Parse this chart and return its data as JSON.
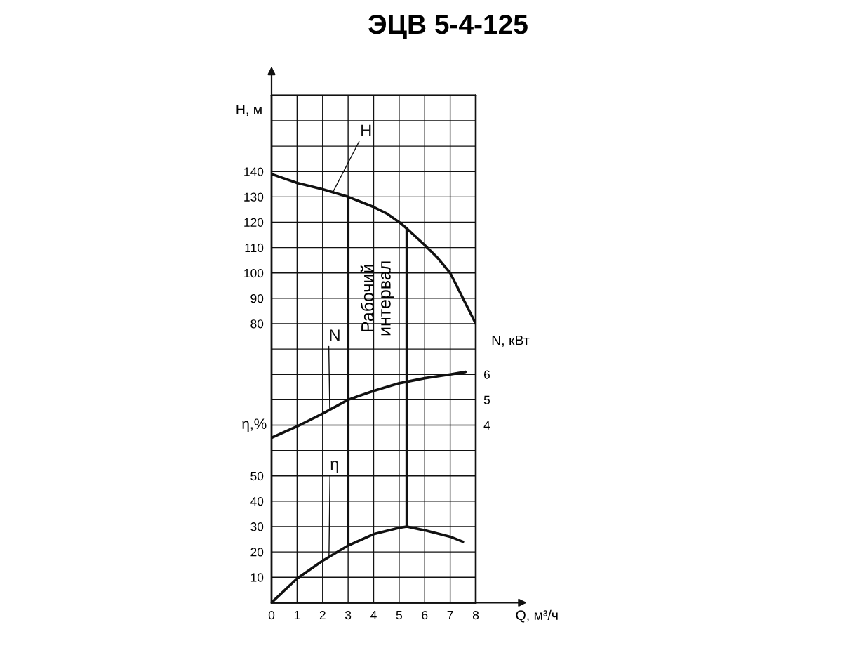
{
  "chart_data": {
    "type": "line",
    "title": "ЭЦВ 5-4-125",
    "xlabel": "Q, м³/ч",
    "ylabel": "H, м",
    "y2label": "N, кВт",
    "y3label": "η,%",
    "xlim": [
      0,
      8
    ],
    "xticks": [
      0,
      1,
      2,
      3,
      4,
      5,
      6,
      7,
      8
    ],
    "ylim": [
      -30,
      170
    ],
    "yticks": [
      {
        "value": -20,
        "label": null
      },
      {
        "value": -10,
        "label": null
      },
      {
        "value": 0,
        "label": null
      },
      {
        "value": 10,
        "label": null
      },
      {
        "value": 20,
        "label": null
      },
      {
        "value": 30,
        "label": null
      },
      {
        "value": 40,
        "label": null
      },
      {
        "value": 50,
        "label": null
      },
      {
        "value": 60,
        "label": null
      },
      {
        "value": 70,
        "label": null
      },
      80,
      90,
      100,
      110,
      120,
      130,
      140,
      {
        "value": 150,
        "label": null
      },
      {
        "value": 160,
        "label": null
      }
    ],
    "y2lim": [
      -3,
      17
    ],
    "y2ticks": [
      4,
      5,
      6
    ],
    "y3lim": [
      0,
      200
    ],
    "y3ticks": [
      10,
      20,
      30,
      40,
      50
    ],
    "grid": true,
    "series": [
      {
        "name": "H",
        "color": "#111111",
        "axis": "y",
        "x": [
          0,
          1,
          2,
          3,
          4,
          4.5,
          5,
          5.3,
          6,
          6.5,
          7,
          7.5,
          8
        ],
        "values": [
          139,
          135.5,
          133,
          130,
          126,
          123.5,
          120,
          117.5,
          111,
          106,
          100,
          90,
          80
        ]
      },
      {
        "name": "N",
        "color": "#111111",
        "axis": "y2",
        "x": [
          0,
          1,
          2,
          3,
          4,
          5,
          6,
          7,
          7.6
        ],
        "values": [
          3.5,
          3.95,
          4.45,
          5,
          5.35,
          5.65,
          5.85,
          6,
          6.1
        ]
      },
      {
        "name": "η",
        "color": "#111111",
        "axis": "y3",
        "x": [
          0,
          1,
          2,
          3,
          4,
          5,
          5.3,
          6,
          7,
          7.5
        ],
        "values": [
          0,
          9.5,
          16.5,
          22.5,
          27,
          29.5,
          30,
          28.5,
          26,
          24
        ]
      }
    ],
    "ref_lines": [
      {
        "axis": "x",
        "value": 3,
        "color": "#111111"
      },
      {
        "axis": "x",
        "value": 5.3,
        "color": "#111111"
      }
    ],
    "annotations": [
      "Рабочий интервал"
    ]
  }
}
